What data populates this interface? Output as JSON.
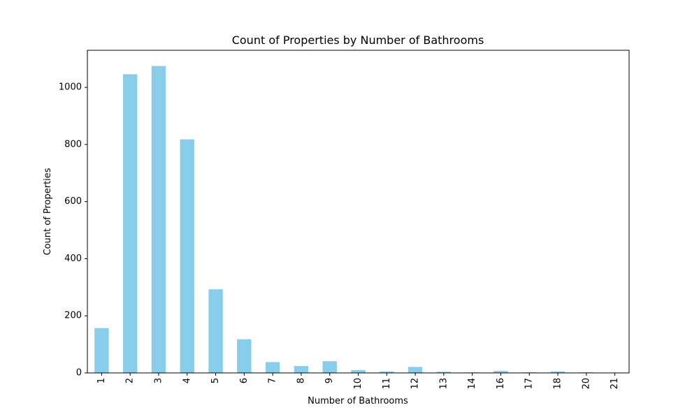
{
  "chart_data": {
    "type": "bar",
    "title": "Count of Properties by Number of Bathrooms",
    "xlabel": "Number of Bathrooms",
    "ylabel": "Count of Properties",
    "categories": [
      "1",
      "2",
      "3",
      "4",
      "5",
      "6",
      "7",
      "8",
      "9",
      "10",
      "11",
      "12",
      "13",
      "14",
      "16",
      "17",
      "18",
      "20",
      "21"
    ],
    "values": [
      157,
      1046,
      1075,
      818,
      293,
      118,
      38,
      24,
      41,
      10,
      5,
      21,
      4,
      2,
      7,
      2,
      5,
      2,
      1
    ],
    "ylim": [
      0,
      1130
    ],
    "yticks": [
      0,
      200,
      400,
      600,
      800,
      1000
    ],
    "bar_color": "#87ceeb",
    "grid": false,
    "legend": "none"
  }
}
